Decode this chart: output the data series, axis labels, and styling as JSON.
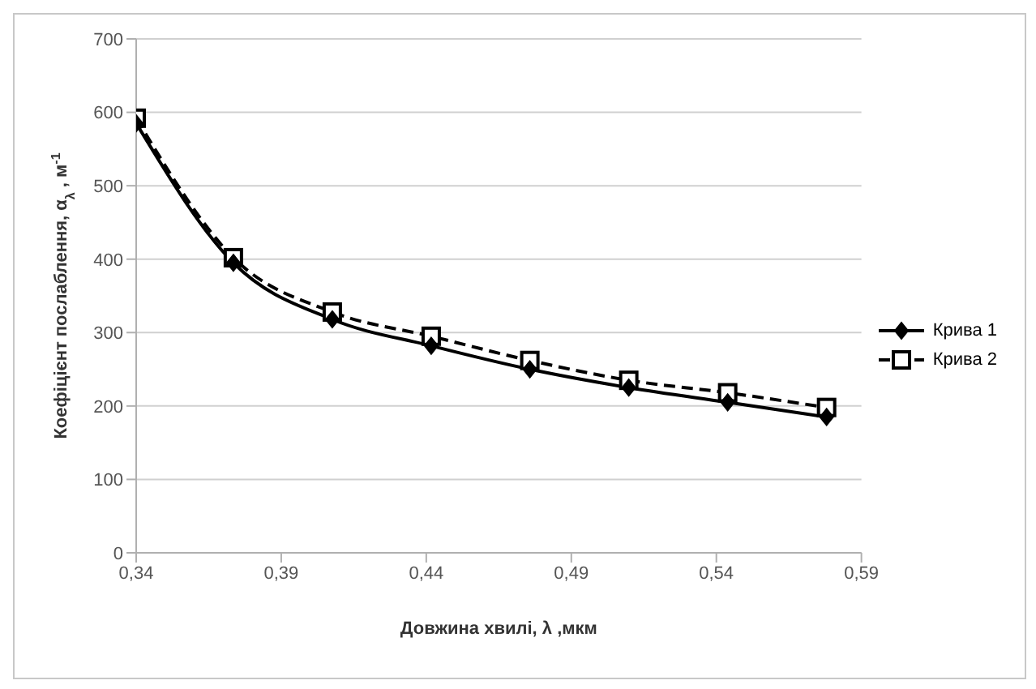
{
  "chart_data": {
    "type": "line",
    "xlabel": "Довжина хвилі, λ ,мкм",
    "ylabel": "Коефіцієнт послаблення, α$_{λ}$ , м$^{-1}$",
    "x": [
      0.34,
      0.3735,
      0.4076,
      0.4417,
      0.4757,
      0.5098,
      0.5439,
      0.578
    ],
    "series": [
      {
        "name": "Крива 1",
        "color": "#000000",
        "values": [
          585,
          395,
          318,
          282,
          250,
          225,
          205,
          185
        ],
        "marker": "diamond",
        "line_style": "solid"
      },
      {
        "name": "Крива 2",
        "color": "#000000",
        "values": [
          592,
          402,
          328,
          295,
          262,
          235,
          218,
          198
        ],
        "marker": "square",
        "line_style": "dashed"
      }
    ],
    "xlim": [
      0.34,
      0.59
    ],
    "xticks": [
      {
        "value": 0.34,
        "label": "0,34"
      },
      {
        "value": 0.39,
        "label": "0,39"
      },
      {
        "value": 0.44,
        "label": "0,44"
      },
      {
        "value": 0.49,
        "label": "0,49"
      },
      {
        "value": 0.54,
        "label": "0,54"
      },
      {
        "value": 0.59,
        "label": "0,59"
      }
    ],
    "ylim": [
      0,
      700
    ],
    "yticks": [
      0,
      100,
      200,
      300,
      400,
      500,
      600,
      700
    ],
    "grid": "y",
    "legend": "right"
  }
}
